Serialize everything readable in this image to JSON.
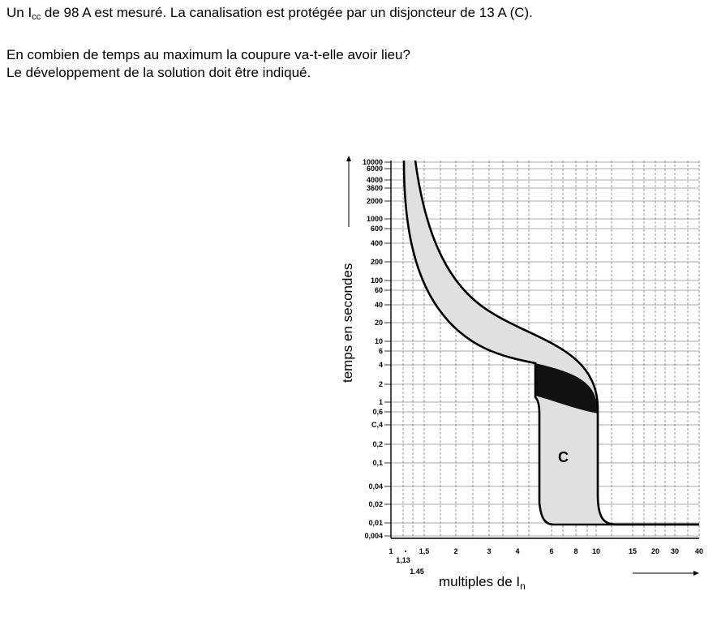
{
  "question": {
    "line1_pre": "Un I",
    "line1_sub": "cc",
    "line1_post": " de 98 A est mesuré. La canalisation est protégée par un disjoncteur de 13 A (C).",
    "line2": "En combien de temps au maximum la coupure va-t-elle avoir lieu?",
    "line3": "Le développement de la solution doit être indiqué."
  },
  "chart": {
    "y_axis_label": "temps en secondes",
    "x_axis_label_pre": "multiples de I",
    "x_axis_label_sub": "n",
    "curve_label": "C",
    "y_ticks": [
      "10000",
      "6000",
      "4000",
      "3600",
      "2000",
      "1000",
      "600",
      "400",
      "200",
      "100",
      "60",
      "40",
      "20",
      "10",
      "6",
      "4",
      "2",
      "1",
      "0,6",
      "C,4",
      "0,2",
      "0,1",
      "0,04",
      "0,02",
      "0,01",
      "0,004"
    ],
    "x_ticks": [
      "1",
      "1,5",
      "2",
      "3",
      "4",
      "6",
      "8",
      "10",
      "15",
      "20",
      "30",
      "40"
    ],
    "x_ticks_extra": [
      "1,13",
      "1.45"
    ]
  }
}
